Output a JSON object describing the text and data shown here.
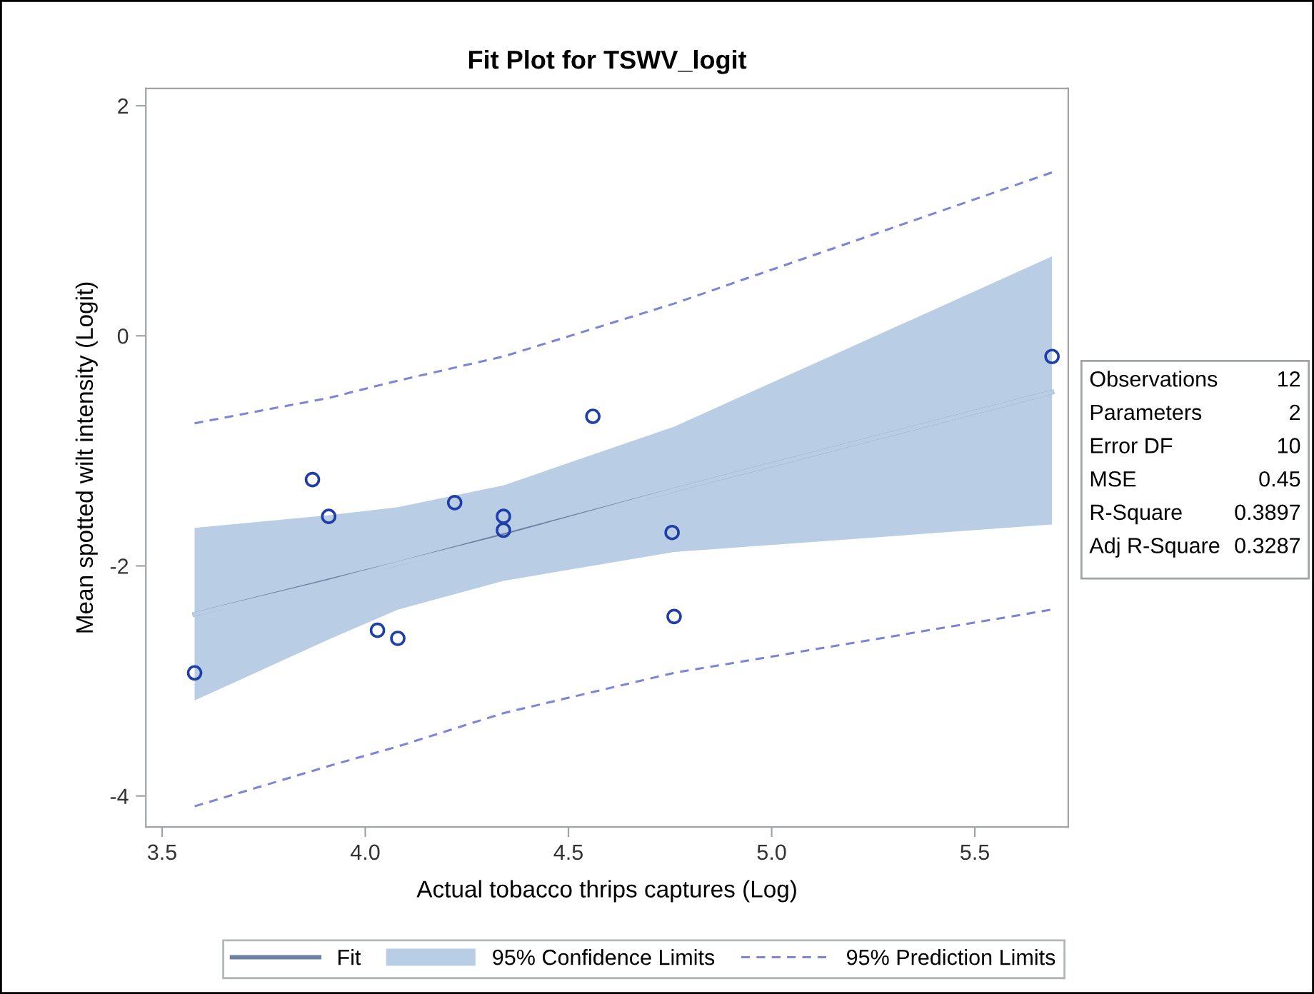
{
  "chart_data": {
    "type": "scatter",
    "title": "Fit Plot for TSWV_logit",
    "xlabel": "Actual tobacco thrips captures (Log)",
    "ylabel": "Mean spotted wilt intensity (Logit)",
    "xlim": [
      3.46,
      5.73
    ],
    "xticks": [
      {
        "value": 3.5,
        "label": "3.5"
      },
      {
        "value": 4.0,
        "label": "4.0"
      },
      {
        "value": 4.5,
        "label": "4.5"
      },
      {
        "value": 5.0,
        "label": "5.0"
      },
      {
        "value": 5.5,
        "label": "5.5"
      }
    ],
    "ylim": [
      -4.27,
      2.15
    ],
    "yticks": [
      -4,
      -2,
      0,
      2
    ],
    "grid": false,
    "legend": "bottom",
    "series": [
      {
        "type": "line",
        "name": "Fit",
        "color": "#6e7f9f",
        "line_style": "solid",
        "x": [
          3.58,
          4.08,
          4.76,
          5.69
        ],
        "values": [
          -2.42,
          -1.98,
          -1.34,
          -0.49
        ]
      },
      {
        "type": "line",
        "name": "95% Confidence Limits",
        "color": "#b9cde5",
        "x": [
          3.58,
          3.91,
          4.08,
          4.34,
          4.76,
          5.69
        ],
        "values": [
          -2.42,
          -2.14,
          -1.98,
          -1.75,
          -1.34,
          -0.49
        ],
        "lower": [
          -3.17,
          -2.64,
          -2.38,
          -2.13,
          -1.88,
          -1.64
        ],
        "upper": [
          -1.67,
          -1.56,
          -1.49,
          -1.3,
          -0.79,
          0.69
        ]
      },
      {
        "type": "line",
        "name": "95% Prediction Limits",
        "color": "#7b86d9",
        "line_style": "dashed",
        "x": [
          3.58,
          3.91,
          4.08,
          4.34,
          4.76,
          5.69
        ],
        "values": [
          -0.76,
          -0.54,
          -0.39,
          -0.18,
          0.28,
          1.42
        ]
      },
      {
        "type": "line",
        "color": "#7b86d9",
        "line_style": "dashed",
        "x": [
          3.58,
          3.91,
          4.08,
          4.34,
          4.76,
          5.69
        ],
        "values": [
          -4.09,
          -3.74,
          -3.57,
          -3.28,
          -2.93,
          -2.38
        ]
      },
      {
        "color": "#1f3fa8",
        "marker": "circle",
        "x": [
          3.58,
          3.87,
          3.91,
          4.03,
          4.08,
          4.22,
          4.34,
          4.34,
          4.56,
          4.755,
          4.76,
          5.69
        ],
        "values": [
          -2.93,
          -1.25,
          -1.57,
          -2.56,
          -2.63,
          -1.45,
          -1.57,
          -1.69,
          -0.7,
          -1.71,
          -2.44,
          -0.18
        ]
      }
    ],
    "annotations": [
      "Observations",
      "12",
      "Parameters",
      "2",
      "Error DF",
      "10",
      "MSE",
      "0.45",
      "R-Square",
      "0.3897",
      "Adj R-Square",
      "0.3287"
    ]
  }
}
